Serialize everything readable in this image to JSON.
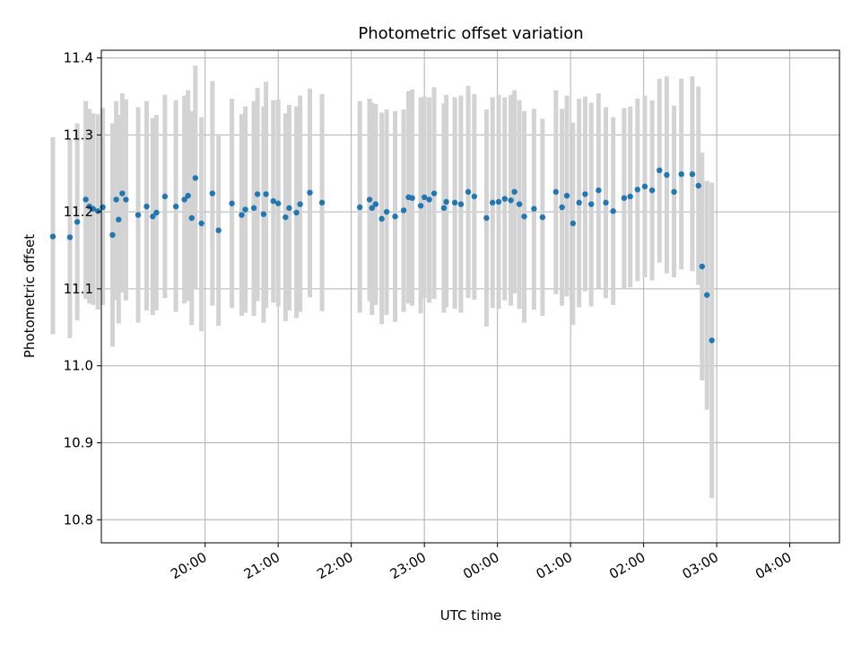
{
  "chart_data": {
    "type": "scatter",
    "title": "Photometric offset variation",
    "xlabel": "UTC time",
    "ylabel": "Photometric offset",
    "x_units": "hours after 19:00 UTC",
    "xlim": [
      18.58,
      28.68
    ],
    "ylim": [
      10.77,
      11.41
    ],
    "x_ticks": [
      20,
      21,
      22,
      23,
      24,
      25,
      26,
      27,
      28
    ],
    "x_tick_labels": [
      "20:00",
      "21:00",
      "22:00",
      "23:00",
      "00:00",
      "01:00",
      "02:00",
      "03:00",
      "04:00"
    ],
    "y_ticks": [
      10.8,
      10.9,
      11.0,
      11.1,
      11.2,
      11.3,
      11.4
    ],
    "y_tick_labels": [
      "10.8",
      "10.9",
      "11.0",
      "11.1",
      "11.2",
      "11.3",
      "11.4"
    ],
    "grid": true,
    "colors": {
      "points": "#1f77b4",
      "error_bars": "#d3d3d3"
    },
    "series": [
      {
        "x": [
          "19:42",
          "19:49",
          "19:54",
          "20:00",
          "20:02",
          "20:08",
          "20:12",
          "20:15",
          "20:22",
          "20:30",
          "20:40",
          "21:10",
          "21:17",
          "21:20",
          "21:24",
          "21:30",
          "21:42",
          "21:50",
          "22:02",
          "22:04",
          "22:55",
          "23:09",
          "23:15",
          "23:22",
          "23:25",
          "23:28",
          "23:32",
          "23:36",
          "23:44",
          "23:47",
          "23:49",
          "23:52",
          "23:55",
          "00:05",
          "00:12",
          "00:17",
          "00:20",
          "00:27",
          "00:36",
          "00:43",
          "00:46",
          "00:49",
          "00:52",
          "00:57",
          "01:06",
          "01:11",
          "01:22",
          "01:30",
          "01:33",
          "01:40",
          "01:43",
          "01:48",
          "01:50",
          "01:56",
          "02:00",
          "02:06",
          "02:09",
          "02:15",
          "02:18",
          "02:26",
          "02:36",
          "03:07",
          "03:15",
          "03:17",
          "03:20",
          "03:25",
          "03:29",
          "03:36",
          "03:43",
          "03:47",
          "03:50",
          "03:57",
          "04:00",
          "04:04",
          "04:08",
          "04:16",
          "04:18",
          "04:25",
          "04:30",
          "04:36",
          "04:41",
          "04:51",
          "04:56",
          "05:01",
          "05:06",
          "05:11",
          "05:14",
          "05:18",
          "05:22",
          "05:30",
          "05:37",
          "05:48",
          "05:53",
          "05:57",
          "06:02",
          "06:07",
          "06:12",
          "06:17",
          "06:23",
          "06:29",
          "06:35",
          "06:44",
          "06:49",
          "06:55",
          "07:01",
          "07:07",
          "07:13",
          "07:19",
          "07:25",
          "07:31",
          "07:40",
          "07:45",
          "07:48",
          "07:52",
          "07:56"
        ],
        "y": [
          11.14,
          11.178,
          11.211,
          11.19,
          11.21,
          11.215,
          11.195,
          11.199,
          11.214,
          11.213,
          11.193,
          11.193,
          11.214,
          11.196,
          11.197,
          11.189,
          11.222,
          11.215,
          11.214,
          11.218,
          11.168,
          11.167,
          11.187,
          11.216,
          11.207,
          11.204,
          11.201,
          11.206,
          11.17,
          11.216,
          11.19,
          11.224,
          11.216,
          11.196,
          11.207,
          11.194,
          11.199,
          11.22,
          11.207,
          11.216,
          11.221,
          11.192,
          11.244,
          11.185,
          11.224,
          11.176,
          11.211,
          11.196,
          11.203,
          11.205,
          11.223,
          11.197,
          11.223,
          11.214,
          11.211,
          11.193,
          11.205,
          11.199,
          11.21,
          11.225,
          11.212,
          11.206,
          11.216,
          11.205,
          11.21,
          11.191,
          11.2,
          11.194,
          11.202,
          11.219,
          11.218,
          11.208,
          11.219,
          11.216,
          11.224,
          11.205,
          11.213,
          11.212,
          11.21,
          11.226,
          11.22,
          11.192,
          11.212,
          11.213,
          11.217,
          11.215,
          11.226,
          11.21,
          11.194,
          11.204,
          11.193,
          11.226,
          11.206,
          11.221,
          11.185,
          11.212,
          11.223,
          11.21,
          11.228,
          11.212,
          11.201,
          11.218,
          11.22,
          11.229,
          11.233,
          11.228,
          11.254,
          11.248,
          11.226,
          11.249,
          11.249,
          11.234,
          11.129,
          11.092,
          11.033
        ],
        "yerr_low": [
          0.157,
          0.151,
          0.153,
          0.141,
          0.143,
          0.146,
          0.145,
          0.144,
          0.16,
          0.162,
          0.178,
          0.124,
          0.129,
          0.122,
          0.125,
          0.12,
          0.133,
          0.118,
          0.128,
          0.123,
          0.127,
          0.131,
          0.128,
          0.129,
          0.126,
          0.125,
          0.128,
          0.127,
          0.145,
          0.131,
          0.135,
          0.129,
          0.131,
          0.14,
          0.135,
          0.128,
          0.127,
          0.132,
          0.137,
          0.135,
          0.137,
          0.139,
          0.145,
          0.14,
          0.146,
          0.124,
          0.136,
          0.131,
          0.134,
          0.14,
          0.139,
          0.141,
          0.148,
          0.132,
          0.134,
          0.135,
          0.133,
          0.137,
          0.14,
          0.136,
          0.141,
          0.137,
          0.132,
          0.139,
          0.131,
          0.137,
          0.134,
          0.137,
          0.132,
          0.138,
          0.14,
          0.14,
          0.131,
          0.134,
          0.137,
          0.136,
          0.137,
          0.138,
          0.141,
          0.138,
          0.134,
          0.141,
          0.137,
          0.139,
          0.132,
          0.137,
          0.132,
          0.136,
          0.138,
          0.131,
          0.128,
          0.133,
          0.128,
          0.131,
          0.132,
          0.136,
          0.126,
          0.133,
          0.127,
          0.124,
          0.122,
          0.117,
          0.118,
          0.119,
          0.118,
          0.117,
          0.12,
          0.128,
          0.111,
          0.124,
          0.126,
          0.129,
          0.148,
          0.149,
          0.205
        ],
        "yerr_high": [
          0.157,
          0.149,
          0.153,
          0.143,
          0.145,
          0.148,
          0.144,
          0.146,
          0.158,
          0.161,
          0.178,
          0.124,
          0.126,
          0.124,
          0.124,
          0.121,
          0.138,
          0.119,
          0.13,
          0.125,
          0.129,
          0.127,
          0.128,
          0.128,
          0.127,
          0.124,
          0.126,
          0.129,
          0.145,
          0.128,
          0.136,
          0.13,
          0.13,
          0.14,
          0.137,
          0.128,
          0.127,
          0.132,
          0.138,
          0.135,
          0.137,
          0.139,
          0.146,
          0.138,
          0.146,
          0.125,
          0.136,
          0.131,
          0.134,
          0.139,
          0.138,
          0.14,
          0.146,
          0.131,
          0.135,
          0.135,
          0.134,
          0.138,
          0.141,
          0.135,
          0.141,
          0.138,
          0.131,
          0.137,
          0.13,
          0.138,
          0.133,
          0.137,
          0.131,
          0.138,
          0.141,
          0.141,
          0.131,
          0.133,
          0.138,
          0.136,
          0.139,
          0.137,
          0.141,
          0.138,
          0.133,
          0.141,
          0.137,
          0.139,
          0.132,
          0.137,
          0.132,
          0.135,
          0.137,
          0.13,
          0.128,
          0.132,
          0.128,
          0.13,
          0.131,
          0.135,
          0.127,
          0.132,
          0.126,
          0.124,
          0.122,
          0.117,
          0.117,
          0.118,
          0.118,
          0.117,
          0.119,
          0.128,
          0.112,
          0.124,
          0.127,
          0.129,
          0.148,
          0.148,
          0.205
        ]
      }
    ]
  }
}
